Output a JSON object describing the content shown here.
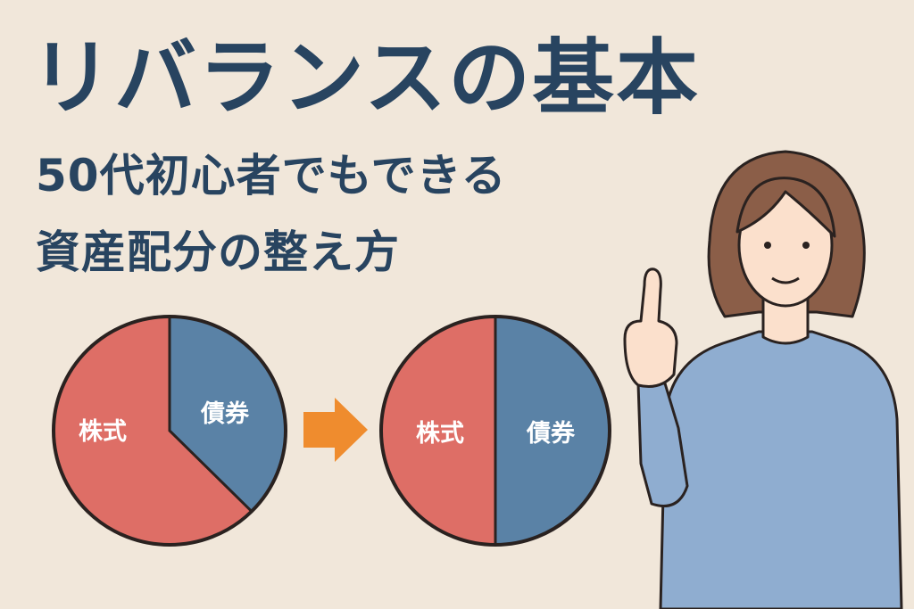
{
  "title": "リバランスの基本",
  "subtitle_line1": "50代初心者でもできる",
  "subtitle_line2": "資産配分の整え方",
  "colors": {
    "background": "#f1e7da",
    "text": "#284460",
    "stocks": "#de6e66",
    "bonds": "#5a82a6",
    "arrow": "#ef8c2e"
  },
  "pies": [
    {
      "name": "before",
      "slices": [
        {
          "label": "株式",
          "share": 62.5
        },
        {
          "label": "債券",
          "share": 37.5
        }
      ]
    },
    {
      "name": "after",
      "slices": [
        {
          "label": "株式",
          "share": 50
        },
        {
          "label": "債券",
          "share": 50
        }
      ]
    }
  ],
  "arrow_icon": "right-arrow-icon",
  "illustration": "woman-pointing-up"
}
